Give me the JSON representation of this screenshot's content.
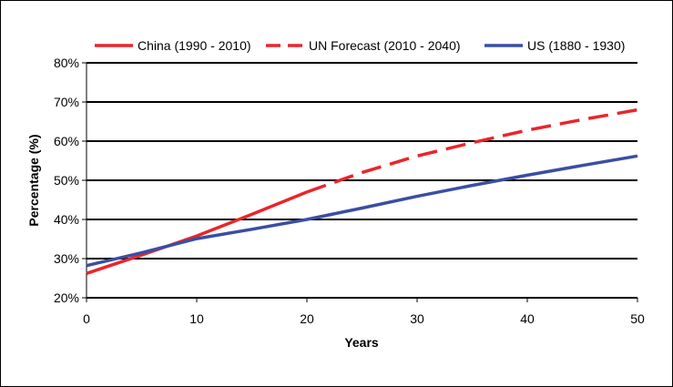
{
  "chart_data": {
    "type": "line",
    "xlabel": "Years",
    "ylabel": "Percentage (%)",
    "xlim": [
      0,
      50
    ],
    "ylim": [
      20,
      80
    ],
    "x_ticks": [
      "0",
      "10",
      "20",
      "30",
      "40",
      "50"
    ],
    "y_ticks": [
      "20%",
      "30%",
      "40%",
      "50%",
      "60%",
      "70%",
      "80%"
    ],
    "x_tick_values": [
      0,
      10,
      20,
      30,
      40,
      50
    ],
    "y_tick_values": [
      20,
      30,
      40,
      50,
      60,
      70,
      80
    ],
    "grid": "horizontal",
    "legend_position": "top",
    "series": [
      {
        "name": "China (1990 - 2010)",
        "color": "#e8262b",
        "dash": "solid",
        "x": [
          0,
          5,
          10,
          15,
          20
        ],
        "y": [
          26.2,
          30.9,
          35.8,
          41.3,
          47.0
        ]
      },
      {
        "name": "UN Forecast (2010 - 2040)",
        "color": "#e8262b",
        "dash": "dashed",
        "x": [
          20,
          25,
          30,
          35,
          40,
          45,
          50
        ],
        "y": [
          47.0,
          52.0,
          56.2,
          59.6,
          62.8,
          65.5,
          68.0
        ]
      },
      {
        "name": "US (1880 - 1930)",
        "color": "#3a4ea3",
        "dash": "solid",
        "x": [
          0,
          5,
          10,
          15,
          20,
          25,
          30,
          35,
          40,
          45,
          50
        ],
        "y": [
          28.2,
          31.5,
          35.1,
          37.5,
          40.0,
          42.9,
          45.9,
          48.7,
          51.3,
          53.8,
          56.2
        ]
      }
    ]
  }
}
